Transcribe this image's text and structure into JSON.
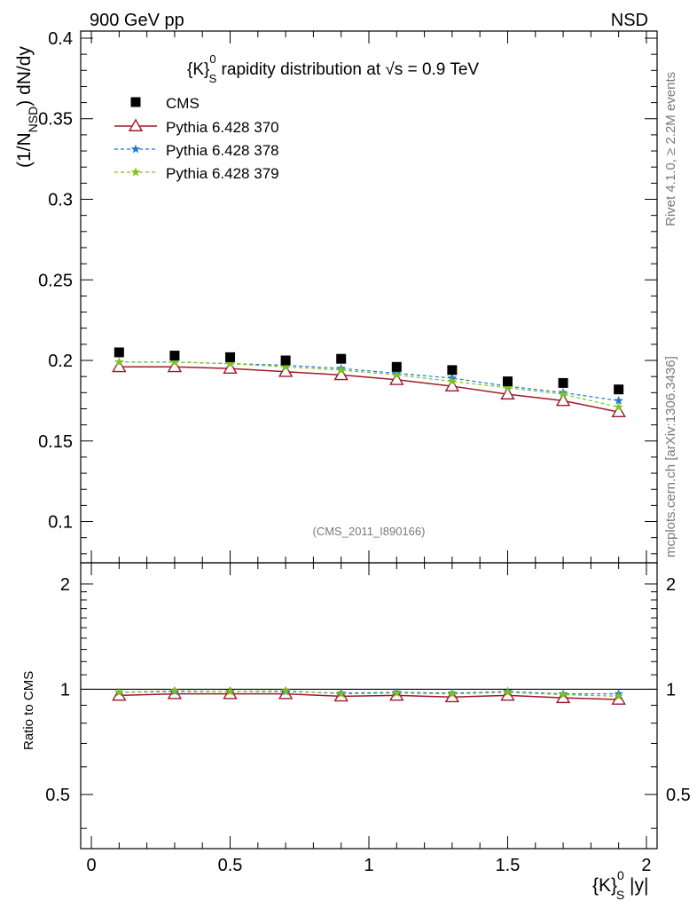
{
  "header": {
    "left": "900 GeV pp",
    "right": "NSD"
  },
  "side_labels": {
    "rivet": "Rivet 4.1.0, ≥ 2.2M events",
    "mcplots": "mcplots.cern.ch [arXiv:1306.3436]"
  },
  "chart_data": [
    {
      "type": "scatter",
      "panel": "main",
      "title_parts": {
        "open": "{K}",
        "sup": "0",
        "sub": "S",
        "rest": " rapidity distribution at ",
        "sqrt": "√s",
        "tail": " = 0.9 TeV"
      },
      "ylabel_parts": {
        "pre": "(1/N",
        "sub": "NSD",
        "post": ") dN/dy"
      },
      "watermark": "(CMS_2011_I890166)",
      "xlim": [
        -0.0385,
        2.0385
      ],
      "ylim": [
        0.0744,
        0.4044
      ],
      "yticks": [
        0.1,
        0.15,
        0.2,
        0.25,
        0.3,
        0.35,
        0.4
      ],
      "ytick_labels": [
        "0.1",
        "0.15",
        "0.2",
        "0.25",
        "0.3",
        "0.35",
        "0.4"
      ],
      "x": [
        0.1,
        0.3,
        0.5,
        0.7,
        0.9,
        1.1,
        1.3,
        1.5,
        1.7,
        1.9
      ],
      "series": [
        {
          "name": "CMS",
          "marker": "square",
          "color": "#000000",
          "values": [
            0.205,
            0.203,
            0.202,
            0.2,
            0.201,
            0.196,
            0.194,
            0.187,
            0.186,
            0.182
          ]
        },
        {
          "name": "Pythia 6.428 370",
          "marker": "triangle-open",
          "line": "solid",
          "color": "#9e1a2a",
          "values": [
            0.196,
            0.196,
            0.195,
            0.193,
            0.191,
            0.188,
            0.184,
            0.179,
            0.175,
            0.168
          ]
        },
        {
          "name": "Pythia 6.428 378",
          "marker": "star",
          "line": "dashed",
          "color": "#1f78d4",
          "values": [
            0.199,
            0.199,
            0.198,
            0.197,
            0.195,
            0.192,
            0.189,
            0.184,
            0.18,
            0.175
          ]
        },
        {
          "name": "Pythia 6.428 379",
          "marker": "star",
          "line": "dashed",
          "color": "#7fc21d",
          "values": [
            0.199,
            0.199,
            0.198,
            0.196,
            0.194,
            0.191,
            0.187,
            0.183,
            0.179,
            0.171
          ]
        }
      ]
    },
    {
      "type": "line",
      "panel": "ratio",
      "ylabel": "Ratio to CMS",
      "xlabel_parts": {
        "open": "{K}",
        "sup": "0",
        "sub": "S",
        "rest": " |y|"
      },
      "xlim": [
        -0.0385,
        2.0385
      ],
      "ylim": [
        0.35,
        2.3
      ],
      "yticks": [
        0.5,
        1,
        2
      ],
      "ytick_labels": [
        "0.5",
        "1",
        "2"
      ],
      "xticks": [
        0,
        0.5,
        1,
        1.5,
        2
      ],
      "xtick_labels": [
        "0",
        "0.5",
        "1",
        "1.5",
        "2"
      ],
      "reference": 1,
      "x": [
        0.1,
        0.3,
        0.5,
        0.7,
        0.9,
        1.1,
        1.3,
        1.5,
        1.7,
        1.9
      ],
      "series": [
        {
          "name": "Pythia 6.428 370",
          "marker": "triangle-open",
          "line": "solid",
          "color": "#9e1a2a",
          "values": [
            0.96,
            0.97,
            0.97,
            0.97,
            0.955,
            0.96,
            0.95,
            0.96,
            0.945,
            0.935
          ]
        },
        {
          "name": "Pythia 6.428 378",
          "marker": "star",
          "line": "dashed",
          "color": "#1f78d4",
          "values": [
            0.98,
            0.985,
            0.985,
            0.985,
            0.975,
            0.98,
            0.975,
            0.985,
            0.97,
            0.97
          ]
        },
        {
          "name": "Pythia 6.428 379",
          "marker": "star",
          "line": "dashed",
          "color": "#7fc21d",
          "values": [
            0.98,
            0.99,
            0.985,
            0.99,
            0.97,
            0.975,
            0.97,
            0.98,
            0.965,
            0.955
          ]
        }
      ]
    }
  ]
}
